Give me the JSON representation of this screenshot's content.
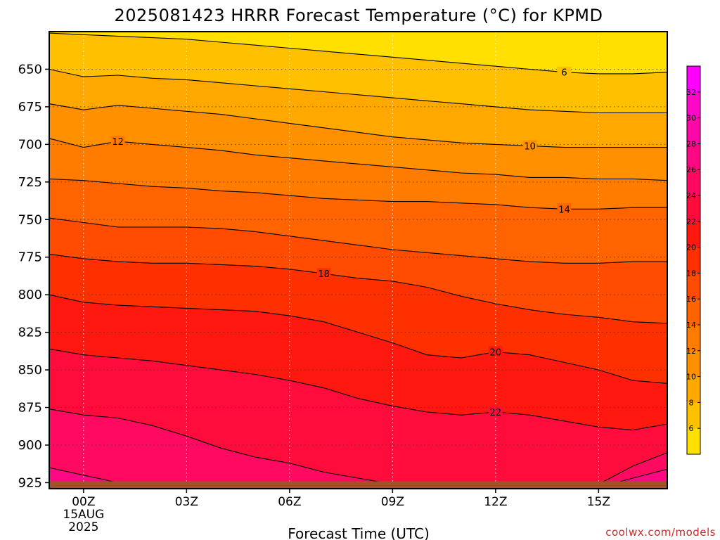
{
  "chart_data": {
    "type": "heatmap",
    "title": "2025081423 HRRR Forecast Temperature (°C) for KPMD",
    "xlabel": "Forecast Time (UTC)",
    "credit": "coolwx.com/models",
    "x_hours": [
      -1,
      0,
      1,
      2,
      3,
      4,
      5,
      6,
      7,
      8,
      9,
      10,
      11,
      12,
      13,
      14,
      15,
      16,
      17
    ],
    "x_ticks": [
      {
        "hour": 0,
        "label": "00Z",
        "date": "15AUG",
        "year": "2025"
      },
      {
        "hour": 3,
        "label": "03Z"
      },
      {
        "hour": 6,
        "label": "06Z"
      },
      {
        "hour": 9,
        "label": "09Z"
      },
      {
        "hour": 12,
        "label": "12Z"
      },
      {
        "hour": 15,
        "label": "15Z"
      }
    ],
    "y_ticks": [
      650,
      675,
      700,
      725,
      750,
      775,
      800,
      825,
      850,
      875,
      900,
      925
    ],
    "ylim": [
      625,
      929
    ],
    "xlim": [
      -1,
      17
    ],
    "y_reversed": true,
    "grid": true,
    "surface_pressure_hpa": 925,
    "colorbar": {
      "levels": [
        4,
        6,
        8,
        10,
        12,
        14,
        16,
        18,
        20,
        22,
        24,
        26,
        28,
        30,
        32,
        34
      ],
      "tick_labels": [
        "6",
        "8",
        "10",
        "12",
        "14",
        "16",
        "18",
        "20",
        "22",
        "24",
        "26",
        "28",
        "30",
        "32"
      ],
      "colors": [
        "#ffe000",
        "#ffc000",
        "#ffa800",
        "#ff9000",
        "#ff7c00",
        "#ff6400",
        "#ff4c00",
        "#ff3000",
        "#ff1810",
        "#ff0c3c",
        "#ff0a60",
        "#ff0884",
        "#ff08a8",
        "#ff08c8",
        "#ff00ff"
      ]
    },
    "isotherms": [
      {
        "value": 6,
        "label": "6",
        "label_hour": 14.0,
        "pressure": [
          626,
          627,
          628,
          629,
          630,
          632,
          634,
          636,
          638,
          640,
          642,
          644,
          646,
          648,
          650,
          652,
          653,
          653,
          652
        ]
      },
      {
        "value": 8,
        "label": "",
        "pressure": [
          650,
          655,
          654,
          656,
          657,
          659,
          661,
          663,
          665,
          667,
          669,
          671,
          673,
          675,
          677,
          678,
          679,
          679,
          679
        ]
      },
      {
        "value": 10,
        "label": "10",
        "label_hour": 13.0,
        "pressure": [
          673,
          677,
          674,
          676,
          678,
          680,
          683,
          686,
          689,
          692,
          695,
          697,
          699,
          700,
          701,
          702,
          702,
          702,
          702
        ]
      },
      {
        "value": 12,
        "label": "12",
        "label_hour": 1.0,
        "pressure": [
          696,
          702,
          698,
          700,
          702,
          704,
          707,
          709,
          711,
          713,
          715,
          717,
          719,
          720,
          722,
          722,
          723,
          723,
          724
        ]
      },
      {
        "value": 14,
        "label": "14",
        "label_hour": 14.0,
        "pressure": [
          723,
          724,
          726,
          728,
          729,
          731,
          732,
          734,
          736,
          737,
          738,
          738,
          739,
          740,
          742,
          743,
          743,
          742,
          742
        ]
      },
      {
        "value": 16,
        "label": "",
        "pressure": [
          749,
          752,
          755,
          755,
          755,
          756,
          758,
          761,
          764,
          767,
          770,
          772,
          774,
          776,
          778,
          779,
          779,
          778,
          778
        ]
      },
      {
        "value": 18,
        "label": "18",
        "label_hour": 7.0,
        "pressure": [
          773,
          776,
          778,
          779,
          779,
          780,
          781,
          783,
          786,
          789,
          791,
          795,
          801,
          806,
          810,
          813,
          815,
          818,
          819
        ]
      },
      {
        "value": 20,
        "label": "20",
        "label_hour": 12.0,
        "pressure": [
          800,
          805,
          807,
          808,
          809,
          810,
          811,
          814,
          818,
          825,
          832,
          840,
          842,
          838,
          840,
          845,
          850,
          857,
          859
        ]
      },
      {
        "value": 22,
        "label": "22",
        "label_hour": 12.0,
        "pressure": [
          836,
          840,
          842,
          844,
          847,
          850,
          853,
          857,
          862,
          869,
          874,
          878,
          880,
          878,
          880,
          884,
          888,
          890,
          886
        ]
      },
      {
        "value": 24,
        "label": "",
        "pressure": [
          876,
          880,
          882,
          887,
          894,
          902,
          908,
          912,
          918,
          922,
          926,
          928,
          928,
          928,
          928,
          928,
          926,
          914,
          905
        ]
      },
      {
        "value": 26,
        "label": "",
        "pressure": [
          915,
          920,
          925,
          928,
          929,
          929,
          929,
          929,
          929,
          929,
          929,
          929,
          929,
          929,
          929,
          929,
          928,
          922,
          916
        ]
      }
    ]
  }
}
